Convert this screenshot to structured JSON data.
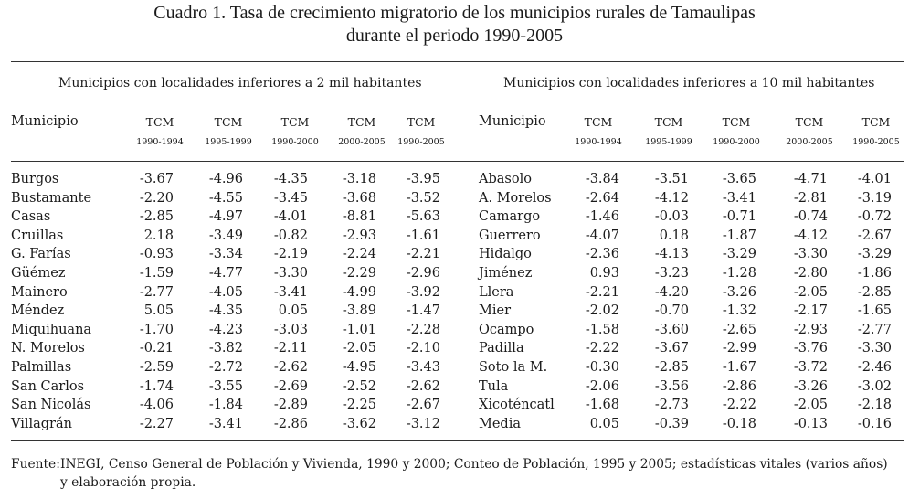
{
  "title_line1": "Cuadro 1. Tasa de crecimiento migratorio de los municipios rurales de Tamaulipas",
  "title_line2": "durante el periodo 1990-2005",
  "left": {
    "group_header": "Municipios con localidades inferiores a 2 mil habitantes",
    "municipio_header": "Municipio",
    "columns": [
      {
        "label": "TCM",
        "period": "1990-1994"
      },
      {
        "label": "TCM",
        "period": "1995-1999"
      },
      {
        "label": "TCM",
        "period": "1990-2000"
      },
      {
        "label": "TCM",
        "period": "2000-2005"
      },
      {
        "label": "TCM",
        "period": "1990-2005"
      }
    ],
    "rows": [
      {
        "name": "Burgos",
        "values": [
          "-3.67",
          "-4.96",
          "-4.35",
          "-3.18",
          "-3.95"
        ]
      },
      {
        "name": "Bustamante",
        "values": [
          "-2.20",
          "-4.55",
          "-3.45",
          "-3.68",
          "-3.52"
        ]
      },
      {
        "name": "Casas",
        "values": [
          "-2.85",
          "-4.97",
          "-4.01",
          "-8.81",
          "-5.63"
        ]
      },
      {
        "name": "Cruillas",
        "values": [
          "2.18",
          "-3.49",
          "-0.82",
          "-2.93",
          "-1.61"
        ]
      },
      {
        "name": "G. Farías",
        "values": [
          "-0.93",
          "-3.34",
          "-2.19",
          "-2.24",
          "-2.21"
        ]
      },
      {
        "name": "Güémez",
        "values": [
          "-1.59",
          "-4.77",
          "-3.30",
          "-2.29",
          "-2.96"
        ]
      },
      {
        "name": "Mainero",
        "values": [
          "-2.77",
          "-4.05",
          "-3.41",
          "-4.99",
          "-3.92"
        ]
      },
      {
        "name": "Méndez",
        "values": [
          "5.05",
          "-4.35",
          "0.05",
          "-3.89",
          "-1.47"
        ]
      },
      {
        "name": "Miquihuana",
        "values": [
          "-1.70",
          "-4.23",
          "-3.03",
          "-1.01",
          "-2.28"
        ]
      },
      {
        "name": "N. Morelos",
        "values": [
          "-0.21",
          "-3.82",
          "-2.11",
          "-2.05",
          "-2.10"
        ]
      },
      {
        "name": "Palmillas",
        "values": [
          "-2.59",
          "-2.72",
          "-2.62",
          "-4.95",
          "-3.43"
        ]
      },
      {
        "name": "San Carlos",
        "values": [
          "-1.74",
          "-3.55",
          "-2.69",
          "-2.52",
          "-2.62"
        ]
      },
      {
        "name": "San Nicolás",
        "values": [
          "-4.06",
          "-1.84",
          "-2.89",
          "-2.25",
          "-2.67"
        ]
      },
      {
        "name": "Villagrán",
        "values": [
          "-2.27",
          "-3.41",
          "-2.86",
          "-3.62",
          "-3.12"
        ]
      }
    ]
  },
  "right": {
    "group_header": "Municipios con localidades inferiores a 10 mil habitantes",
    "municipio_header": "Municipio",
    "columns": [
      {
        "label": "TCM",
        "period": "1990-1994"
      },
      {
        "label": "TCM",
        "period": "1995-1999"
      },
      {
        "label": "TCM",
        "period": "1990-2000"
      },
      {
        "label": "TCM",
        "period": "2000-2005"
      },
      {
        "label": "TCM",
        "period": "1990-2005"
      }
    ],
    "rows": [
      {
        "name": "Abasolo",
        "values": [
          "-3.84",
          "-3.51",
          "-3.65",
          "-4.71",
          "-4.01"
        ]
      },
      {
        "name": "A. Morelos",
        "values": [
          "-2.64",
          "-4.12",
          "-3.41",
          "-2.81",
          "-3.19"
        ]
      },
      {
        "name": "Camargo",
        "values": [
          "-1.46",
          "-0.03",
          "-0.71",
          "-0.74",
          "-0.72"
        ]
      },
      {
        "name": "Guerrero",
        "values": [
          "-4.07",
          "0.18",
          "-1.87",
          "-4.12",
          "-2.67"
        ]
      },
      {
        "name": "Hidalgo",
        "values": [
          "-2.36",
          "-4.13",
          "-3.29",
          "-3.30",
          "-3.29"
        ]
      },
      {
        "name": "Jiménez",
        "values": [
          "0.93",
          "-3.23",
          "-1.28",
          "-2.80",
          "-1.86"
        ]
      },
      {
        "name": "Llera",
        "values": [
          "-2.21",
          "-4.20",
          "-3.26",
          "-2.05",
          "-2.85"
        ]
      },
      {
        "name": "Mier",
        "values": [
          "-2.02",
          "-0.70",
          "-1.32",
          "-2.17",
          "-1.65"
        ]
      },
      {
        "name": "Ocampo",
        "values": [
          "-1.58",
          "-3.60",
          "-2.65",
          "-2.93",
          "-2.77"
        ]
      },
      {
        "name": "Padilla",
        "values": [
          "-2.22",
          "-3.67",
          "-2.99",
          "-3.76",
          "-3.30"
        ]
      },
      {
        "name": "Soto la M.",
        "values": [
          "-0.30",
          "-2.85",
          "-1.67",
          "-3.72",
          "-2.46"
        ]
      },
      {
        "name": "Tula",
        "values": [
          "-2.06",
          "-3.56",
          "-2.86",
          "-3.26",
          "-3.02"
        ]
      },
      {
        "name": "Xicoténcatl",
        "values": [
          "-1.68",
          "-2.73",
          "-2.22",
          "-2.05",
          "-2.18"
        ]
      },
      {
        "name": "Media",
        "values": [
          "0.05",
          "-0.39",
          "-0.18",
          "-0.13",
          "-0.16"
        ]
      }
    ]
  },
  "source_label": "Fuente:",
  "source_line1": "INEGI, Censo General de Población y Vivienda, 1990 y 2000; Conteo de Población, 1995 y 2005; estadísticas vitales (varios años)",
  "source_line2": "y elaboración propia."
}
